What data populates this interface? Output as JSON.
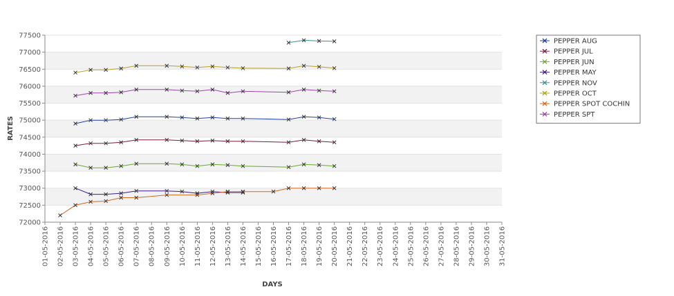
{
  "chart_data": {
    "type": "line",
    "xlabel": "DAYS",
    "ylabel": "RATES",
    "ylim": [
      72000,
      77500
    ],
    "yticks": [
      72000,
      72500,
      73000,
      73500,
      74000,
      74500,
      75000,
      75500,
      76000,
      76500,
      77000,
      77500
    ],
    "xlim": [
      "01-05-2016",
      "31-05-2016"
    ],
    "x_tick_labels": [
      "01-05-2016",
      "02-05-2016",
      "03-05-2016",
      "04-05-2016",
      "05-05-2016",
      "06-05-2016",
      "07-05-2016",
      "08-05-2016",
      "09-05-2016",
      "10-05-2016",
      "11-05-2016",
      "12-05-2016",
      "13-05-2016",
      "14-05-2016",
      "15-05-2016",
      "16-05-2016",
      "17-05-2016",
      "18-05-2016",
      "19-05-2016",
      "20-05-2016",
      "21-05-2016",
      "22-05-2016",
      "23-05-2016",
      "24-05-2016",
      "25-05-2016",
      "26-05-2016",
      "27-05-2016",
      "28-05-2016",
      "29-05-2016",
      "30-05-2016",
      "31-05-2016"
    ],
    "grid": true,
    "legend_position": "right",
    "series": [
      {
        "name": "PEPPER AUG",
        "color": "#1f3fa0",
        "points": [
          [
            "03-05-2016",
            74900
          ],
          [
            "04-05-2016",
            75000
          ],
          [
            "05-05-2016",
            75000
          ],
          [
            "06-05-2016",
            75020
          ],
          [
            "07-05-2016",
            75100
          ],
          [
            "09-05-2016",
            75100
          ],
          [
            "10-05-2016",
            75080
          ],
          [
            "11-05-2016",
            75050
          ],
          [
            "12-05-2016",
            75080
          ],
          [
            "13-05-2016",
            75050
          ],
          [
            "14-05-2016",
            75050
          ],
          [
            "17-05-2016",
            75020
          ],
          [
            "18-05-2016",
            75100
          ],
          [
            "19-05-2016",
            75080
          ],
          [
            "20-05-2016",
            75030
          ]
        ]
      },
      {
        "name": "PEPPER JUL",
        "color": "#7a1840",
        "points": [
          [
            "03-05-2016",
            74250
          ],
          [
            "04-05-2016",
            74320
          ],
          [
            "05-05-2016",
            74320
          ],
          [
            "06-05-2016",
            74350
          ],
          [
            "07-05-2016",
            74420
          ],
          [
            "09-05-2016",
            74420
          ],
          [
            "10-05-2016",
            74400
          ],
          [
            "11-05-2016",
            74380
          ],
          [
            "12-05-2016",
            74400
          ],
          [
            "13-05-2016",
            74380
          ],
          [
            "14-05-2016",
            74380
          ],
          [
            "17-05-2016",
            74350
          ],
          [
            "18-05-2016",
            74420
          ],
          [
            "19-05-2016",
            74380
          ],
          [
            "20-05-2016",
            74350
          ]
        ]
      },
      {
        "name": "PEPPER JUN",
        "color": "#6aa82a",
        "points": [
          [
            "03-05-2016",
            73700
          ],
          [
            "04-05-2016",
            73600
          ],
          [
            "05-05-2016",
            73600
          ],
          [
            "06-05-2016",
            73650
          ],
          [
            "07-05-2016",
            73720
          ],
          [
            "09-05-2016",
            73720
          ],
          [
            "10-05-2016",
            73700
          ],
          [
            "11-05-2016",
            73650
          ],
          [
            "12-05-2016",
            73700
          ],
          [
            "13-05-2016",
            73680
          ],
          [
            "14-05-2016",
            73650
          ],
          [
            "17-05-2016",
            73620
          ],
          [
            "18-05-2016",
            73700
          ],
          [
            "19-05-2016",
            73680
          ],
          [
            "20-05-2016",
            73650
          ]
        ]
      },
      {
        "name": "PEPPER MAY",
        "color": "#3d1a8a",
        "points": [
          [
            "03-05-2016",
            73000
          ],
          [
            "04-05-2016",
            72820
          ],
          [
            "05-05-2016",
            72820
          ],
          [
            "06-05-2016",
            72850
          ],
          [
            "07-05-2016",
            72920
          ],
          [
            "09-05-2016",
            72920
          ],
          [
            "10-05-2016",
            72900
          ],
          [
            "11-05-2016",
            72850
          ],
          [
            "12-05-2016",
            72900
          ],
          [
            "13-05-2016",
            72870
          ],
          [
            "14-05-2016",
            72870
          ]
        ]
      },
      {
        "name": "PEPPER NOV",
        "color": "#3a9090",
        "points": [
          [
            "17-05-2016",
            77280
          ],
          [
            "18-05-2016",
            77350
          ],
          [
            "19-05-2016",
            77330
          ],
          [
            "20-05-2016",
            77320
          ]
        ]
      },
      {
        "name": "PEPPER OCT",
        "color": "#b8a020",
        "points": [
          [
            "03-05-2016",
            76400
          ],
          [
            "04-05-2016",
            76480
          ],
          [
            "05-05-2016",
            76480
          ],
          [
            "06-05-2016",
            76520
          ],
          [
            "07-05-2016",
            76600
          ],
          [
            "09-05-2016",
            76600
          ],
          [
            "10-05-2016",
            76580
          ],
          [
            "11-05-2016",
            76550
          ],
          [
            "12-05-2016",
            76580
          ],
          [
            "13-05-2016",
            76550
          ],
          [
            "14-05-2016",
            76530
          ],
          [
            "17-05-2016",
            76520
          ],
          [
            "18-05-2016",
            76600
          ],
          [
            "19-05-2016",
            76570
          ],
          [
            "20-05-2016",
            76530
          ]
        ]
      },
      {
        "name": "PEPPER SPOT COCHIN",
        "color": "#d2691e",
        "points": [
          [
            "02-05-2016",
            72200
          ],
          [
            "03-05-2016",
            72500
          ],
          [
            "04-05-2016",
            72600
          ],
          [
            "05-05-2016",
            72620
          ],
          [
            "06-05-2016",
            72720
          ],
          [
            "07-05-2016",
            72720
          ],
          [
            "09-05-2016",
            72800
          ],
          [
            "11-05-2016",
            72800
          ],
          [
            "12-05-2016",
            72850
          ],
          [
            "13-05-2016",
            72900
          ],
          [
            "14-05-2016",
            72900
          ],
          [
            "16-05-2016",
            72900
          ],
          [
            "17-05-2016",
            73000
          ],
          [
            "18-05-2016",
            73000
          ],
          [
            "19-05-2016",
            73000
          ],
          [
            "20-05-2016",
            73000
          ]
        ]
      },
      {
        "name": "PEPPER SPT",
        "color": "#a040b0",
        "points": [
          [
            "03-05-2016",
            75720
          ],
          [
            "04-05-2016",
            75800
          ],
          [
            "05-05-2016",
            75800
          ],
          [
            "06-05-2016",
            75820
          ],
          [
            "07-05-2016",
            75900
          ],
          [
            "09-05-2016",
            75900
          ],
          [
            "10-05-2016",
            75870
          ],
          [
            "11-05-2016",
            75850
          ],
          [
            "12-05-2016",
            75900
          ],
          [
            "13-05-2016",
            75800
          ],
          [
            "14-05-2016",
            75850
          ],
          [
            "17-05-2016",
            75820
          ],
          [
            "18-05-2016",
            75900
          ],
          [
            "19-05-2016",
            75870
          ],
          [
            "20-05-2016",
            75850
          ]
        ]
      }
    ]
  }
}
